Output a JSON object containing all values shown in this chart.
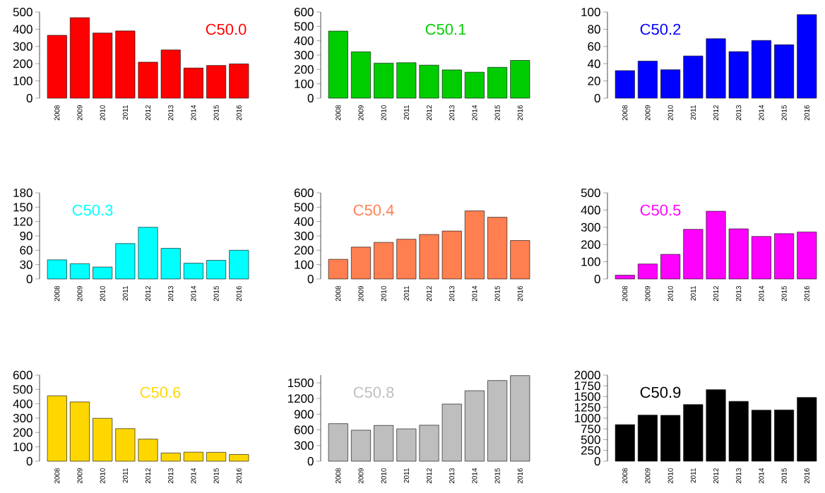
{
  "chart_data": [
    {
      "type": "bar",
      "title": "C50.0",
      "categories": [
        "2008",
        "2009",
        "2010",
        "2011",
        "2012",
        "2013",
        "2014",
        "2015",
        "2016"
      ],
      "values": [
        365,
        467,
        378,
        390,
        209,
        280,
        175,
        190,
        199
      ],
      "color": "#ff0000",
      "ylim": [
        0,
        500
      ],
      "yticks": [
        0,
        100,
        200,
        300,
        400,
        500
      ]
    },
    {
      "type": "bar",
      "title": "C50.1",
      "categories": [
        "2008",
        "2009",
        "2010",
        "2011",
        "2012",
        "2013",
        "2014",
        "2015",
        "2016"
      ],
      "values": [
        467,
        323,
        244,
        247,
        230,
        197,
        181,
        215,
        263
      ],
      "color": "#00cd00",
      "ylim": [
        0,
        600
      ],
      "yticks": [
        0,
        100,
        200,
        300,
        400,
        500,
        600
      ]
    },
    {
      "type": "bar",
      "title": "C50.2",
      "categories": [
        "2008",
        "2009",
        "2010",
        "2011",
        "2012",
        "2013",
        "2014",
        "2015",
        "2016"
      ],
      "values": [
        32,
        43,
        33,
        49,
        69,
        54,
        67,
        62,
        97
      ],
      "color": "#0000ff",
      "ylim": [
        0,
        100
      ],
      "yticks": [
        0,
        20,
        40,
        60,
        80,
        100
      ]
    },
    {
      "type": "bar",
      "title": "C50.3",
      "categories": [
        "2008",
        "2009",
        "2010",
        "2011",
        "2012",
        "2013",
        "2014",
        "2015",
        "2016"
      ],
      "values": [
        40,
        32,
        25,
        74,
        108,
        64,
        33,
        39,
        60
      ],
      "color": "#00ffff",
      "ylim": [
        0,
        180
      ],
      "yticks": [
        0,
        30,
        60,
        90,
        120,
        150,
        180
      ]
    },
    {
      "type": "bar",
      "title": "C50.4",
      "categories": [
        "2008",
        "2009",
        "2010",
        "2011",
        "2012",
        "2013",
        "2014",
        "2015",
        "2016"
      ],
      "values": [
        137,
        222,
        255,
        277,
        310,
        334,
        474,
        430,
        268
      ],
      "color": "#ff7f50",
      "ylim": [
        0,
        600
      ],
      "yticks": [
        0,
        100,
        200,
        300,
        400,
        500,
        600
      ]
    },
    {
      "type": "bar",
      "title": "C50.5",
      "categories": [
        "2008",
        "2009",
        "2010",
        "2011",
        "2012",
        "2013",
        "2014",
        "2015",
        "2016"
      ],
      "values": [
        22,
        87,
        143,
        288,
        393,
        291,
        247,
        263,
        273
      ],
      "color": "#ff00ff",
      "ylim": [
        0,
        500
      ],
      "yticks": [
        0,
        100,
        200,
        300,
        400,
        500
      ]
    },
    {
      "type": "bar",
      "title": "C50.6",
      "categories": [
        "2008",
        "2009",
        "2010",
        "2011",
        "2012",
        "2013",
        "2014",
        "2015",
        "2016"
      ],
      "values": [
        455,
        413,
        299,
        227,
        154,
        57,
        63,
        62,
        47
      ],
      "color": "#ffd700",
      "ylim": [
        0,
        600
      ],
      "yticks": [
        0,
        100,
        200,
        300,
        400,
        500,
        600
      ]
    },
    {
      "type": "bar",
      "title": "C50.8",
      "categories": [
        "2008",
        "2009",
        "2010",
        "2011",
        "2012",
        "2013",
        "2014",
        "2015",
        "2016"
      ],
      "values": [
        720,
        595,
        685,
        620,
        690,
        1095,
        1350,
        1545,
        1640
      ],
      "color": "#bebebe",
      "ylim": [
        0,
        1650
      ],
      "yticks": [
        0,
        300,
        600,
        900,
        1200,
        1500
      ]
    },
    {
      "type": "bar",
      "title": "C50.9",
      "categories": [
        "2008",
        "2009",
        "2010",
        "2011",
        "2012",
        "2013",
        "2014",
        "2015",
        "2016"
      ],
      "values": [
        850,
        1070,
        1065,
        1315,
        1660,
        1390,
        1185,
        1190,
        1480
      ],
      "color": "#000000",
      "ylim": [
        0,
        2000
      ],
      "yticks": [
        0,
        250,
        500,
        750,
        1000,
        1250,
        1500,
        1750,
        2000
      ]
    }
  ]
}
